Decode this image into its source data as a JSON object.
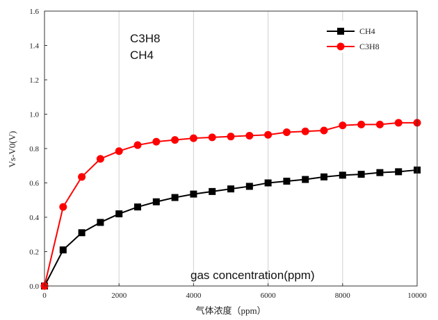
{
  "chart_data": {
    "type": "line",
    "xlabel": "气体浓度（ppm）",
    "ylabel": "Vs-V0(V)",
    "xlim": [
      0,
      10000
    ],
    "ylim": [
      0,
      1.6
    ],
    "x_ticks": [
      "0",
      "2000",
      "4000",
      "6000",
      "8000",
      "10000"
    ],
    "y_ticks": [
      "0.0",
      "0.2",
      "0.4",
      "0.6",
      "0.8",
      "1.0",
      "1.2",
      "1.4",
      "1.6"
    ],
    "grid": "vertical",
    "legend_position": "top-right",
    "x": [
      0,
      500,
      1000,
      1500,
      2000,
      2500,
      3000,
      3500,
      4000,
      4500,
      5000,
      5500,
      6000,
      6500,
      7000,
      7500,
      8000,
      8500,
      9000,
      9500,
      10000
    ],
    "series": [
      {
        "name": "CH4",
        "color": "#000000",
        "marker": "square",
        "values": [
          0.0,
          0.21,
          0.31,
          0.37,
          0.42,
          0.46,
          0.49,
          0.515,
          0.535,
          0.55,
          0.565,
          0.58,
          0.6,
          0.61,
          0.62,
          0.635,
          0.645,
          0.65,
          0.66,
          0.665,
          0.675
        ]
      },
      {
        "name": "C3H8",
        "color": "#ff0000",
        "marker": "circle",
        "values": [
          0.0,
          0.46,
          0.635,
          0.74,
          0.785,
          0.82,
          0.84,
          0.85,
          0.86,
          0.865,
          0.87,
          0.875,
          0.88,
          0.895,
          0.9,
          0.905,
          0.935,
          0.94,
          0.94,
          0.95,
          0.95
        ]
      }
    ],
    "overlay_labels": [
      "C3H8",
      "CH4",
      "gas concentration(ppm)"
    ]
  }
}
